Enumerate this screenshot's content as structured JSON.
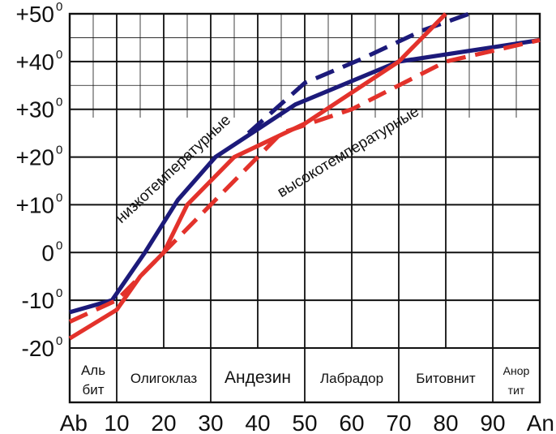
{
  "chart_data": {
    "type": "line",
    "title": "",
    "xlabel": "",
    "ylabel": "",
    "xlim": [
      0,
      100
    ],
    "ylim": [
      -20,
      50
    ],
    "x_ticks": [
      {
        "x": 0,
        "label": "Ab"
      },
      {
        "x": 10,
        "label": "10"
      },
      {
        "x": 20,
        "label": "20"
      },
      {
        "x": 30,
        "label": "30"
      },
      {
        "x": 40,
        "label": "40"
      },
      {
        "x": 50,
        "label": "50"
      },
      {
        "x": 60,
        "label": "60"
      },
      {
        "x": 70,
        "label": "70"
      },
      {
        "x": 80,
        "label": "80"
      },
      {
        "x": 90,
        "label": "90"
      },
      {
        "x": 100,
        "label": "An"
      }
    ],
    "y_ticks": [
      {
        "y": 50,
        "label": "+50",
        "sup": "0"
      },
      {
        "y": 40,
        "label": "+40",
        "sup": "0"
      },
      {
        "y": 30,
        "label": "+30",
        "sup": "0"
      },
      {
        "y": 20,
        "label": "+20",
        "sup": "0"
      },
      {
        "y": 10,
        "label": "+10",
        "sup": "0"
      },
      {
        "y": 0,
        "label": "0",
        "sup": "0"
      },
      {
        "y": -10,
        "label": "-10",
        "sup": "0"
      },
      {
        "y": -20,
        "label": "-20",
        "sup": "0"
      }
    ],
    "grid": true,
    "series": [
      {
        "color": "#1c1a7a",
        "dash": false,
        "x": [
          0,
          9,
          16,
          23,
          31,
          48,
          70,
          100
        ],
        "y": [
          -12.5,
          -10,
          0,
          11,
          20,
          31,
          40,
          44.5
        ]
      },
      {
        "color": "#1c1a7a",
        "dash": true,
        "x": [
          38,
          50,
          62,
          75,
          85
        ],
        "y": [
          25,
          35.5,
          40.5,
          46.5,
          50
        ]
      },
      {
        "color": "#e3322b",
        "dash": false,
        "x": [
          0,
          10,
          15,
          20,
          25,
          35,
          50,
          70,
          80
        ],
        "y": [
          -18,
          -12,
          -5,
          0,
          10,
          20,
          27,
          40,
          50
        ]
      },
      {
        "color": "#e3322b",
        "dash": true,
        "x": [
          0,
          10,
          45,
          60,
          70,
          80,
          100
        ],
        "y": [
          -14.5,
          -10,
          25,
          30,
          35,
          40,
          44.5
        ]
      }
    ],
    "annotations": [
      {
        "text": "низкотемпературные",
        "x": 11,
        "y": 6,
        "angle": -43
      },
      {
        "text": "высокотемпературные",
        "x": 45,
        "y": 11.5,
        "angle": -31
      }
    ]
  },
  "zones": [
    {
      "lines": [
        "Аль",
        "бит"
      ],
      "x_start": 0,
      "x_end": 10,
      "size": "normal"
    },
    {
      "lines": [
        "Олигоклаз"
      ],
      "x_start": 10,
      "x_end": 30,
      "size": "normal"
    },
    {
      "lines": [
        "Андезин"
      ],
      "x_start": 30,
      "x_end": 50,
      "size": "big"
    },
    {
      "lines": [
        "Лабрадор"
      ],
      "x_start": 50,
      "x_end": 70,
      "size": "normal"
    },
    {
      "lines": [
        "Битовнит"
      ],
      "x_start": 70,
      "x_end": 90,
      "size": "normal"
    },
    {
      "lines": [
        "Анор",
        "тит"
      ],
      "x_start": 90,
      "x_end": 100,
      "size": "small"
    }
  ],
  "colors": {
    "blue": "#1c1a7a",
    "red": "#e3322b",
    "grid": "#111111"
  }
}
